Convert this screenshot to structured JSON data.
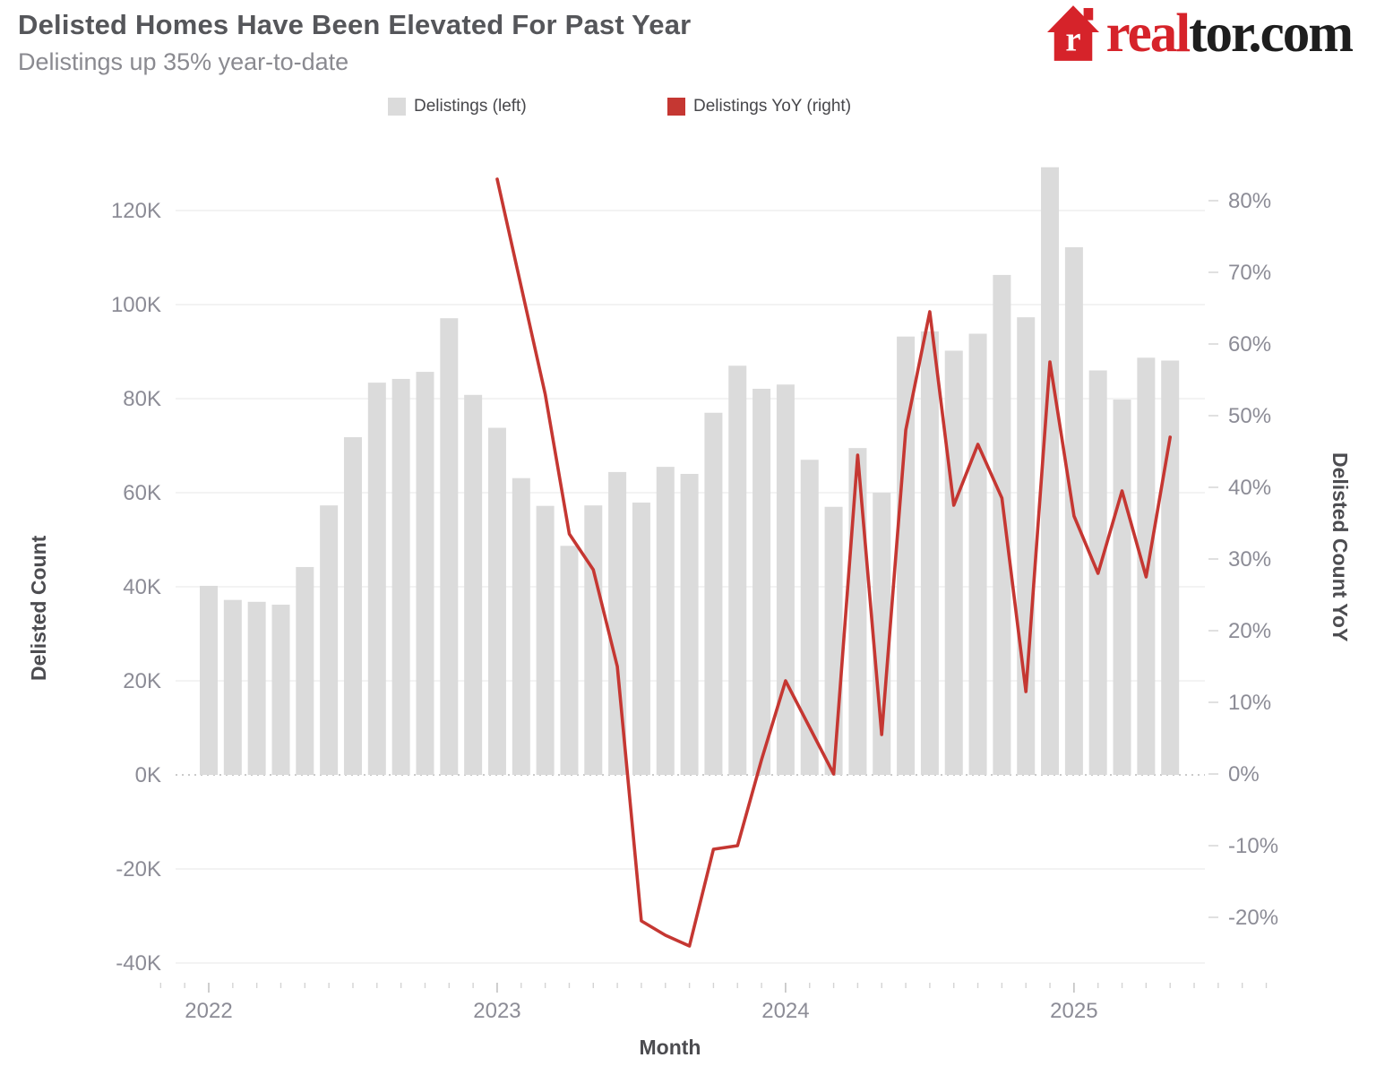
{
  "header": {
    "title": "Delisted Homes Have Been Elevated For Past Year",
    "subtitle": "Delistings up 35% year-to-date"
  },
  "logo": {
    "text_red": "real",
    "text_black": "tor.com",
    "reg": "®",
    "house_color": "#d6232a",
    "house_letter": "r"
  },
  "legend": [
    {
      "label": "Delistings (left)",
      "color": "#dbdbdb"
    },
    {
      "label": "Delistings YoY (right)",
      "color": "#c53732"
    }
  ],
  "axes": {
    "left_title": "Delisted Count",
    "right_title": "Delisted Count YoY",
    "x_title": "Month",
    "left_ticks": [
      {
        "v": 120,
        "label": "120K"
      },
      {
        "v": 100,
        "label": "100K"
      },
      {
        "v": 80,
        "label": "80K"
      },
      {
        "v": 60,
        "label": "60K"
      },
      {
        "v": 40,
        "label": "40K"
      },
      {
        "v": 20,
        "label": "20K"
      },
      {
        "v": 0,
        "label": "0K"
      },
      {
        "v": -20,
        "label": "-20K"
      },
      {
        "v": -40,
        "label": "-40K"
      }
    ],
    "right_ticks": [
      {
        "v": 80,
        "label": "80%"
      },
      {
        "v": 70,
        "label": "70%"
      },
      {
        "v": 60,
        "label": "60%"
      },
      {
        "v": 50,
        "label": "50%"
      },
      {
        "v": 40,
        "label": "40%"
      },
      {
        "v": 30,
        "label": "30%"
      },
      {
        "v": 20,
        "label": "20%"
      },
      {
        "v": 10,
        "label": "10%"
      },
      {
        "v": 0,
        "label": "0%"
      },
      {
        "v": -10,
        "label": "-10%"
      },
      {
        "v": -20,
        "label": "-20%"
      }
    ],
    "x_ticks": [
      {
        "month_index": 0,
        "label": "2022"
      },
      {
        "month_index": 12,
        "label": "2023"
      },
      {
        "month_index": 24,
        "label": "2024"
      },
      {
        "month_index": 36,
        "label": "2025"
      }
    ]
  },
  "chart_data": {
    "type": "combo",
    "months": [
      "2022-01",
      "2022-02",
      "2022-03",
      "2022-04",
      "2022-05",
      "2022-06",
      "2022-07",
      "2022-08",
      "2022-09",
      "2022-10",
      "2022-11",
      "2022-12",
      "2023-01",
      "2023-02",
      "2023-03",
      "2023-04",
      "2023-05",
      "2023-06",
      "2023-07",
      "2023-08",
      "2023-09",
      "2023-10",
      "2023-11",
      "2023-12",
      "2024-01",
      "2024-02",
      "2024-03",
      "2024-04",
      "2024-05",
      "2024-06",
      "2024-07",
      "2024-08",
      "2024-09",
      "2024-10",
      "2024-11",
      "2024-12",
      "2025-01",
      "2025-02",
      "2025-03",
      "2025-04",
      "2025-05"
    ],
    "series": [
      {
        "name": "Delistings (left)",
        "type": "bar",
        "axis": "left",
        "unit": "thousands",
        "color": "#dbdbdb",
        "values": [
          40.2,
          37.2,
          36.8,
          36.2,
          44.2,
          57.3,
          71.8,
          83.4,
          84.2,
          85.7,
          97.1,
          80.8,
          73.8,
          63.1,
          57.2,
          48.7,
          57.3,
          64.4,
          57.9,
          65.5,
          64.0,
          77.0,
          87.0,
          82.1,
          83.0,
          67.0,
          57.0,
          69.5,
          60.0,
          93.2,
          94.3,
          90.2,
          93.8,
          106.3,
          97.3,
          129.2,
          112.2,
          86.0,
          79.8,
          88.7,
          88.1
        ]
      },
      {
        "name": "Delistings YoY (right)",
        "type": "line",
        "axis": "right",
        "unit": "percent",
        "color": "#c53732",
        "start_month_index": 12,
        "values": [
          83,
          68,
          53,
          33.5,
          28.5,
          15,
          -20.5,
          -22.5,
          -24,
          -10.5,
          -10,
          2,
          13,
          6.5,
          0,
          44.5,
          5.5,
          48,
          64.5,
          37.5,
          46,
          38.5,
          11.5,
          57.5,
          36,
          28,
          39.5,
          27.5,
          47
        ]
      }
    ],
    "title": "Delisted Homes Have Been Elevated For Past Year",
    "xlabel": "Month",
    "ylabel_left": "Delisted Count",
    "ylabel_right": "Delisted Count YoY",
    "ylim_left_k": [
      -40,
      120
    ],
    "ylim_right_pct": [
      -20,
      80
    ],
    "grid": "horizontal-left-axis",
    "zero_line": "dotted",
    "legend_position": "top"
  }
}
